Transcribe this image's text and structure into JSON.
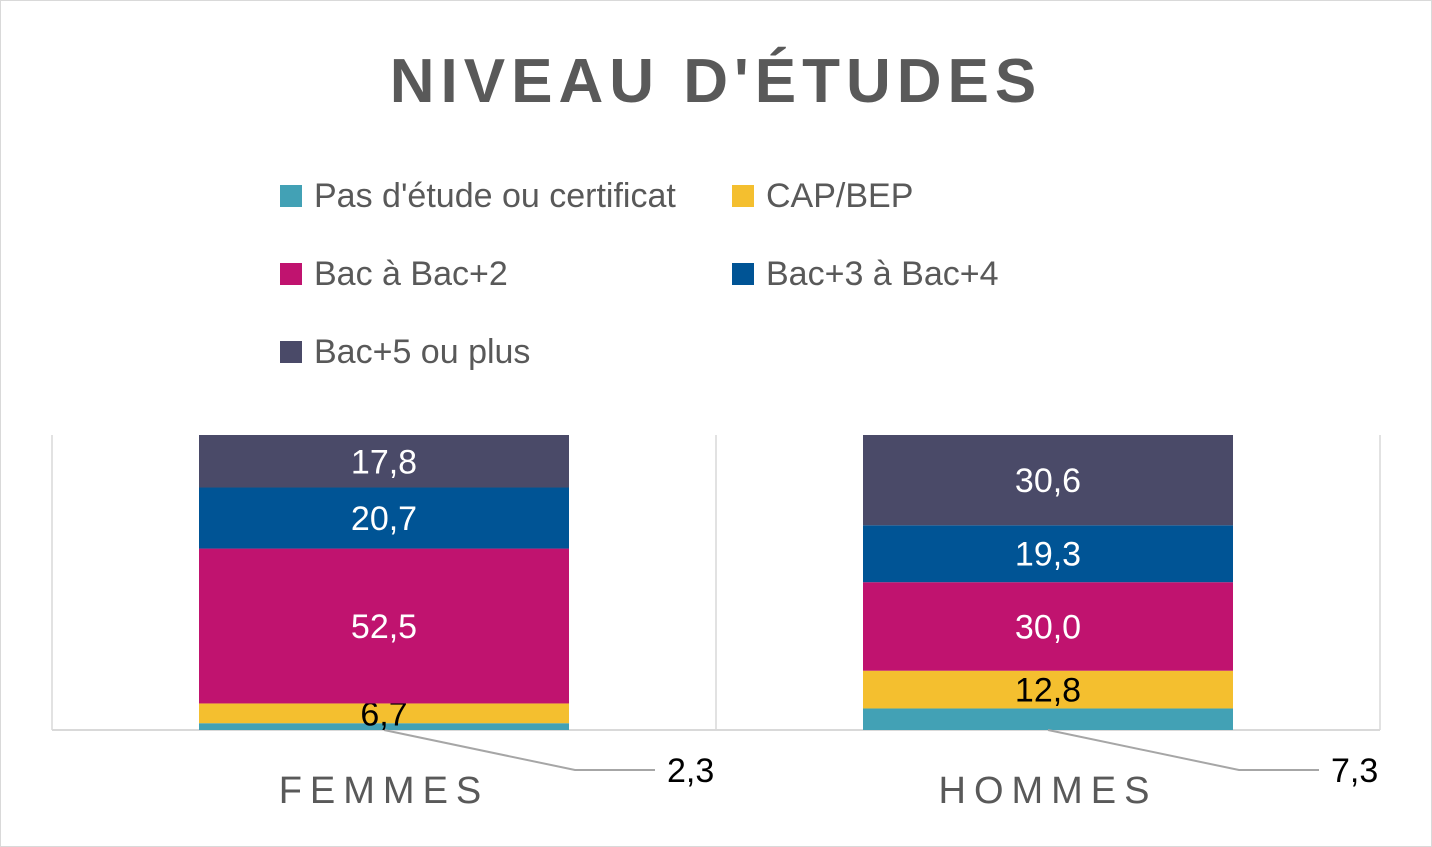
{
  "chart_data": {
    "type": "bar",
    "stacked": true,
    "title": "NIVEAU D'ÉTUDES",
    "categories": [
      "FEMMES",
      "HOMMES"
    ],
    "legend_position": "top",
    "grid": false,
    "ylim": [
      0,
      100
    ],
    "series": [
      {
        "name": "Pas d'étude ou certificat",
        "color": "#42A1B5",
        "values": [
          2.3,
          7.3
        ],
        "labels": [
          "2,3",
          "7,3"
        ]
      },
      {
        "name": "CAP/BEP",
        "color": "#F4BF2F",
        "values": [
          6.7,
          12.8
        ],
        "labels": [
          "6,7",
          "12,8"
        ]
      },
      {
        "name": "Bac à Bac+2",
        "color": "#C0136F",
        "values": [
          52.5,
          30.0
        ],
        "labels": [
          "52,5",
          "30,0"
        ]
      },
      {
        "name": "Bac+3 à Bac+4",
        "color": "#005495",
        "values": [
          20.7,
          19.3
        ],
        "labels": [
          "20,7",
          "19,3"
        ]
      },
      {
        "name": "Bac+5 ou plus",
        "color": "#4A4A68",
        "values": [
          17.8,
          30.6
        ],
        "labels": [
          "17,8",
          "30,6"
        ]
      }
    ]
  }
}
